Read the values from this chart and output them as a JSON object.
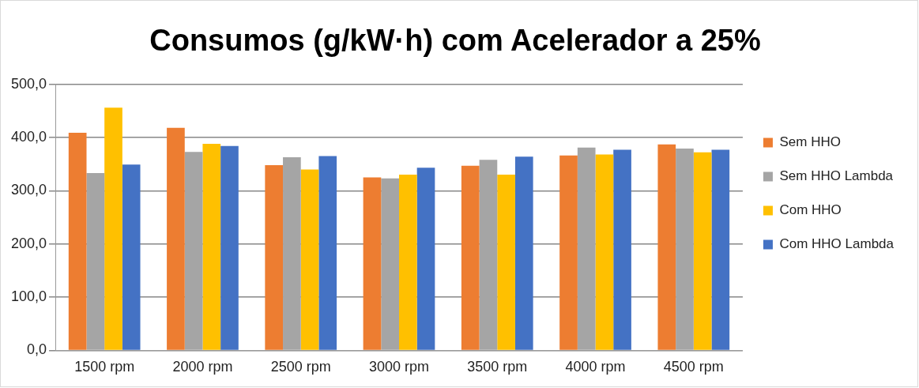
{
  "chart_data": {
    "type": "bar",
    "title": "Consumos (g/kW·h) com Acelerador a 25%",
    "categories": [
      "1500 rpm",
      "2000 rpm",
      "2500 rpm",
      "3000 rpm",
      "3500 rpm",
      "4000 rpm",
      "4500 rpm"
    ],
    "series": [
      {
        "name": "Sem HHO",
        "color": "#ed7d31",
        "values": [
          409,
          418,
          348,
          325,
          347,
          366,
          387
        ]
      },
      {
        "name": "Sem HHO Lambda",
        "color": "#a5a5a5",
        "values": [
          333,
          373,
          363,
          323,
          358,
          381,
          379
        ]
      },
      {
        "name": "Com HHO",
        "color": "#ffc000",
        "values": [
          456,
          388,
          340,
          330,
          330,
          368,
          372
        ]
      },
      {
        "name": "Com HHO Lambda",
        "color": "#4472c4",
        "values": [
          349,
          384,
          365,
          343,
          364,
          377,
          377
        ]
      }
    ],
    "ylim": [
      0,
      500
    ],
    "yticks": [
      {
        "value": 0,
        "label": "0,0"
      },
      {
        "value": 100,
        "label": "100,0"
      },
      {
        "value": 200,
        "label": "200,0"
      },
      {
        "value": 300,
        "label": "300,0"
      },
      {
        "value": 400,
        "label": "400,0"
      },
      {
        "value": 500,
        "label": "500,0"
      }
    ],
    "grid": "y",
    "legend": "right"
  }
}
